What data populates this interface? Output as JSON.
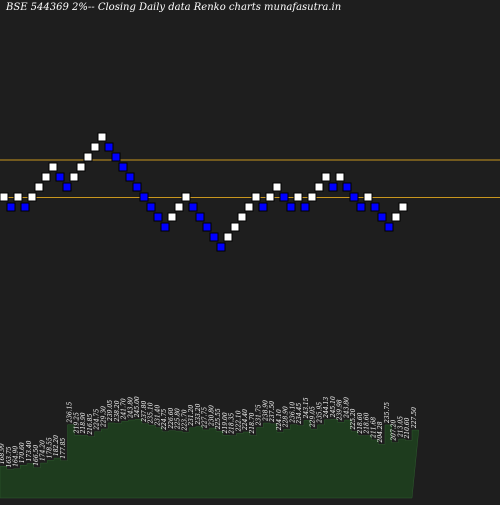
{
  "header": {
    "title": "BSE 544369 2%-- Closing Daily data Renko charts munafasutra.in"
  },
  "colors": {
    "background": "#1e1e1e",
    "up_brick": "#ffffff",
    "down_brick": "#0000ff",
    "brick_border": "#000000",
    "reference_line": "#c8961e",
    "volume_fill": "#1e3c1e",
    "volume_stroke": "#2e5a2e",
    "label_text": "#ffffff"
  },
  "chart_data": [
    {
      "type": "renko",
      "title": "BSE 544369 2%-- Closing Daily data Renko charts munafasutra.in",
      "brick_size_note": "2%",
      "bricks": [
        {
          "dir": "up",
          "level": 0
        },
        {
          "dir": "down",
          "level": -1
        },
        {
          "dir": "up",
          "level": 0
        },
        {
          "dir": "down",
          "level": -1
        },
        {
          "dir": "up",
          "level": 0
        },
        {
          "dir": "up",
          "level": 1
        },
        {
          "dir": "up",
          "level": 2
        },
        {
          "dir": "up",
          "level": 3
        },
        {
          "dir": "down",
          "level": 2
        },
        {
          "dir": "down",
          "level": 1
        },
        {
          "dir": "up",
          "level": 2
        },
        {
          "dir": "up",
          "level": 3
        },
        {
          "dir": "up",
          "level": 4
        },
        {
          "dir": "up",
          "level": 5
        },
        {
          "dir": "up",
          "level": 6
        },
        {
          "dir": "down",
          "level": 5
        },
        {
          "dir": "down",
          "level": 4
        },
        {
          "dir": "down",
          "level": 3
        },
        {
          "dir": "down",
          "level": 2
        },
        {
          "dir": "down",
          "level": 1
        },
        {
          "dir": "down",
          "level": 0
        },
        {
          "dir": "down",
          "level": -1
        },
        {
          "dir": "down",
          "level": -2
        },
        {
          "dir": "down",
          "level": -3
        },
        {
          "dir": "up",
          "level": -2
        },
        {
          "dir": "up",
          "level": -1
        },
        {
          "dir": "up",
          "level": 0
        },
        {
          "dir": "down",
          "level": -1
        },
        {
          "dir": "down",
          "level": -2
        },
        {
          "dir": "down",
          "level": -3
        },
        {
          "dir": "down",
          "level": -4
        },
        {
          "dir": "down",
          "level": -5
        },
        {
          "dir": "up",
          "level": -4
        },
        {
          "dir": "up",
          "level": -3
        },
        {
          "dir": "up",
          "level": -2
        },
        {
          "dir": "up",
          "level": -1
        },
        {
          "dir": "up",
          "level": 0
        },
        {
          "dir": "down",
          "level": -1
        },
        {
          "dir": "up",
          "level": 0
        },
        {
          "dir": "up",
          "level": 1
        },
        {
          "dir": "down",
          "level": 0
        },
        {
          "dir": "down",
          "level": -1
        },
        {
          "dir": "up",
          "level": 0
        },
        {
          "dir": "down",
          "level": -1
        },
        {
          "dir": "up",
          "level": 0
        },
        {
          "dir": "up",
          "level": 1
        },
        {
          "dir": "up",
          "level": 2
        },
        {
          "dir": "down",
          "level": 1
        },
        {
          "dir": "up",
          "level": 2
        },
        {
          "dir": "down",
          "level": 1
        },
        {
          "dir": "down",
          "level": 0
        },
        {
          "dir": "down",
          "level": -1
        },
        {
          "dir": "up",
          "level": 0
        },
        {
          "dir": "down",
          "level": -1
        },
        {
          "dir": "down",
          "level": -2
        },
        {
          "dir": "down",
          "level": -3
        },
        {
          "dir": "up",
          "level": -2
        },
        {
          "dir": "up",
          "level": -1
        }
      ],
      "reference_lines": [
        {
          "level": 3.8
        },
        {
          "level": 0.05
        }
      ]
    },
    {
      "type": "area",
      "labels": [
        "168.99",
        "163.75",
        "164.90",
        "170.60",
        "173.40",
        "166.50",
        "174.20",
        "178.55",
        "182.20",
        "177.85",
        "236.15",
        "219.25",
        "218.90",
        "216.85",
        "224.75",
        "229.30",
        "239.05",
        "238.20",
        "241.70",
        "243.80",
        "245.00",
        "237.80",
        "235.10",
        "231.40",
        "224.75",
        "226.60",
        "225.80",
        "223.70",
        "231.20",
        "233.20",
        "227.75",
        "230.80",
        "225.55",
        "219.00",
        "218.35",
        "222.10",
        "224.40",
        "218.70",
        "231.75",
        "238.90",
        "237.50",
        "224.10",
        "228.90",
        "236.10",
        "234.45",
        "243.15",
        "229.05",
        "235.95",
        "244.13",
        "245.10",
        "239.98",
        "243.80",
        "225.20",
        "218.60",
        "218.60",
        "211.68",
        "204.28",
        "235.75",
        "207.20",
        "213.05",
        "210.60",
        "227.50"
      ],
      "values": [
        168.99,
        163.75,
        164.9,
        170.6,
        173.4,
        166.5,
        174.2,
        178.55,
        182.2,
        177.85,
        236.15,
        219.25,
        218.9,
        216.85,
        224.75,
        229.3,
        239.05,
        238.2,
        241.7,
        243.8,
        245.0,
        237.8,
        235.1,
        231.4,
        224.75,
        226.6,
        225.8,
        223.7,
        231.2,
        233.2,
        227.75,
        230.8,
        225.55,
        219.0,
        218.35,
        222.1,
        224.4,
        218.7,
        231.75,
        238.9,
        237.5,
        224.1,
        228.9,
        236.1,
        234.45,
        243.15,
        229.05,
        235.95,
        244.13,
        245.1,
        239.98,
        243.8,
        225.2,
        218.6,
        218.6,
        211.68,
        204.28,
        235.75,
        207.2,
        213.05,
        210.6,
        227.5
      ],
      "ylim": [
        150,
        260
      ]
    }
  ]
}
